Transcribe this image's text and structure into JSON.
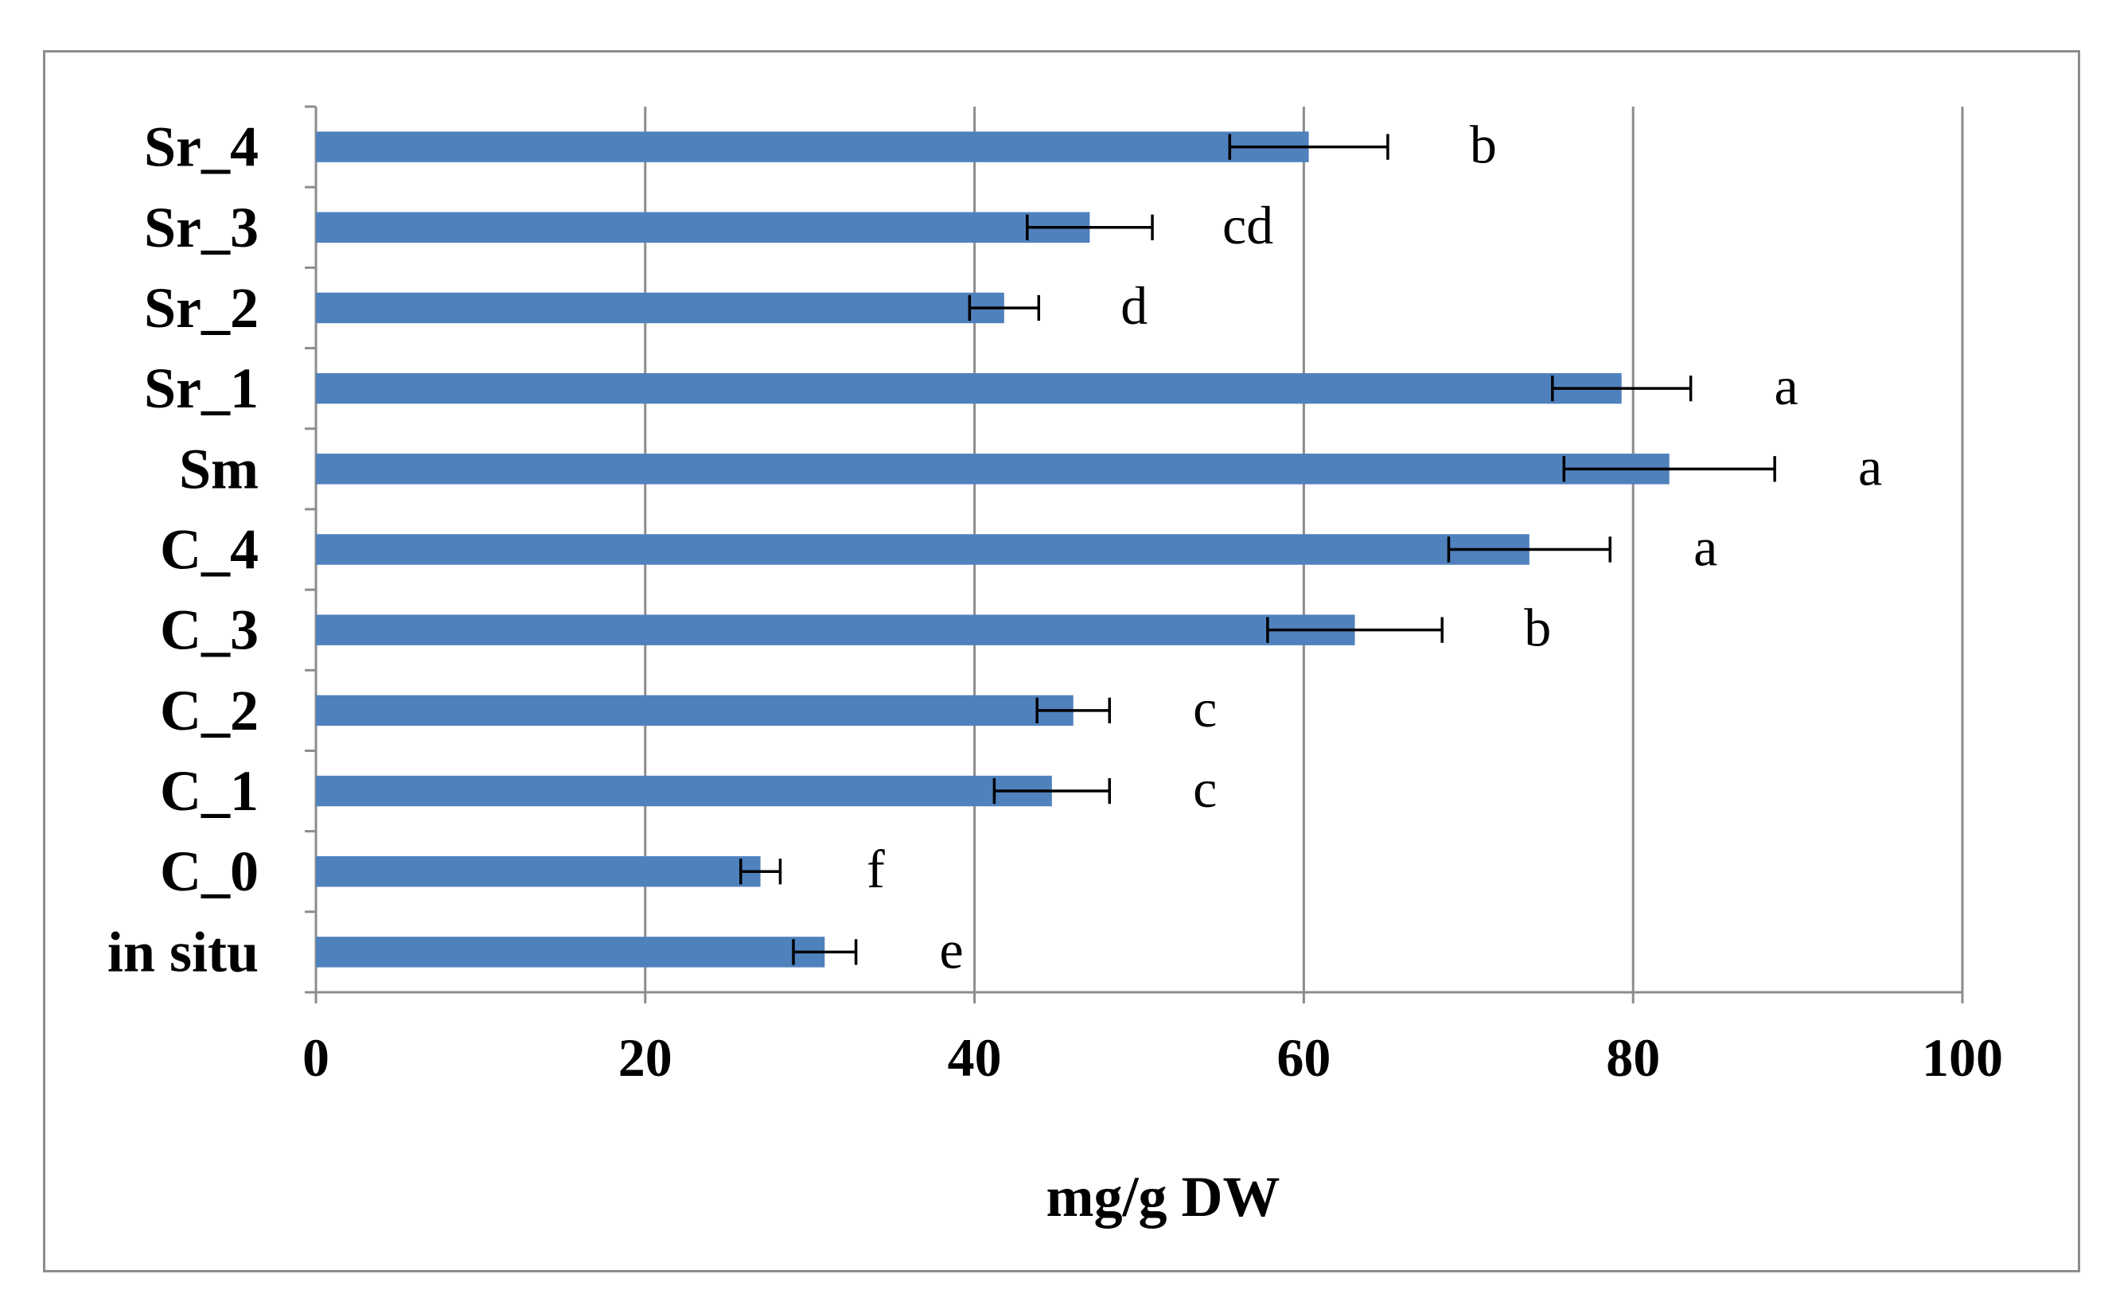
{
  "chart_data": {
    "type": "bar",
    "orientation": "horizontal",
    "title": "",
    "xlabel": "mg/g DW",
    "ylabel": "",
    "xlim": [
      0,
      100
    ],
    "x_ticks": [
      0,
      20,
      40,
      60,
      80,
      100
    ],
    "grid": true,
    "bar_color": "#4f81bd",
    "categories": [
      "in situ",
      "C_0",
      "C_1",
      "C_2",
      "C_3",
      "C_4",
      "Sm",
      "Sr_1",
      "Sr_2",
      "Sr_3",
      "Sr_4"
    ],
    "values": [
      30.9,
      27.0,
      44.7,
      46.0,
      63.1,
      73.7,
      82.2,
      79.3,
      41.8,
      47.0,
      60.3
    ],
    "errors": [
      1.9,
      1.2,
      3.5,
      2.2,
      5.3,
      4.9,
      6.4,
      4.2,
      2.1,
      3.8,
      4.8
    ],
    "significance": [
      "e",
      "f",
      "c",
      "c",
      "b",
      "a",
      "a",
      "a",
      "d",
      "cd",
      "b"
    ]
  }
}
